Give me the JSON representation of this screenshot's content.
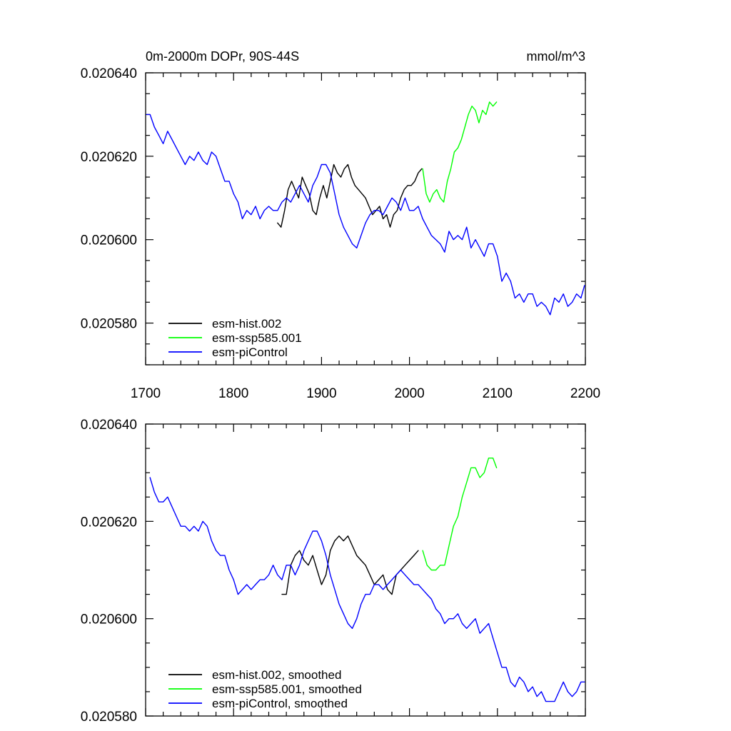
{
  "chart_data": [
    {
      "type": "line",
      "title_left": "0m-2000m DOPr, 90S-44S",
      "title_right": "mmol/m^3",
      "xlabel": "",
      "ylabel": "",
      "xlim": [
        1700,
        2200
      ],
      "ylim": [
        0.02057,
        0.02064
      ],
      "x_ticks": [
        1700,
        1800,
        1900,
        2000,
        2100,
        2200
      ],
      "x_tick_labels": [
        "1700",
        "1800",
        "1900",
        "2000",
        "2100",
        "2200"
      ],
      "y_ticks": [
        0.02058,
        0.0206,
        0.02062,
        0.02064
      ],
      "y_tick_labels": [
        "0.020580",
        "0.020600",
        "0.020620",
        "0.020640"
      ],
      "legend_position": "bottom-left",
      "grid": false,
      "series": [
        {
          "name": "esm-hist.002",
          "color": "#000000",
          "x": [
            1850,
            1854,
            1858,
            1862,
            1866,
            1870,
            1874,
            1878,
            1882,
            1886,
            1890,
            1894,
            1898,
            1902,
            1906,
            1910,
            1914,
            1918,
            1922,
            1926,
            1930,
            1934,
            1938,
            1942,
            1946,
            1950,
            1954,
            1958,
            1962,
            1966,
            1970,
            1974,
            1978,
            1982,
            1986,
            1990,
            1994,
            1998,
            2002,
            2006,
            2010,
            2014
          ],
          "y": [
            0.020604,
            0.020603,
            0.020607,
            0.020612,
            0.020614,
            0.020612,
            0.02061,
            0.020615,
            0.020613,
            0.020611,
            0.020607,
            0.020606,
            0.02061,
            0.020613,
            0.02061,
            0.020614,
            0.020618,
            0.020616,
            0.020615,
            0.020617,
            0.020618,
            0.020615,
            0.020613,
            0.020612,
            0.020611,
            0.02061,
            0.020608,
            0.020606,
            0.020607,
            0.020608,
            0.020605,
            0.020606,
            0.020603,
            0.020606,
            0.020607,
            0.02061,
            0.020612,
            0.020613,
            0.020613,
            0.020614,
            0.020616,
            0.020617
          ]
        },
        {
          "name": "esm-ssp585.001",
          "color": "#00ff00",
          "x": [
            2015,
            2019,
            2023,
            2027,
            2031,
            2035,
            2039,
            2043,
            2047,
            2051,
            2055,
            2059,
            2063,
            2067,
            2071,
            2075,
            2079,
            2083,
            2087,
            2091,
            2095,
            2099
          ],
          "y": [
            0.020617,
            0.020611,
            0.020609,
            0.020611,
            0.020612,
            0.02061,
            0.020609,
            0.020614,
            0.020617,
            0.020621,
            0.020622,
            0.020624,
            0.020627,
            0.02063,
            0.020632,
            0.020631,
            0.020628,
            0.020631,
            0.02063,
            0.020633,
            0.020632,
            0.020633
          ]
        },
        {
          "name": "esm-piControl",
          "color": "#0000ff",
          "x": [
            1701,
            1705,
            1710,
            1715,
            1720,
            1725,
            1730,
            1735,
            1740,
            1745,
            1750,
            1755,
            1760,
            1765,
            1770,
            1775,
            1780,
            1785,
            1790,
            1795,
            1800,
            1805,
            1810,
            1815,
            1820,
            1825,
            1830,
            1835,
            1840,
            1845,
            1850,
            1855,
            1860,
            1865,
            1870,
            1875,
            1880,
            1885,
            1890,
            1895,
            1900,
            1905,
            1910,
            1915,
            1920,
            1925,
            1930,
            1935,
            1940,
            1945,
            1950,
            1955,
            1960,
            1965,
            1970,
            1975,
            1980,
            1985,
            1990,
            1995,
            2000,
            2005,
            2010,
            2015,
            2020,
            2025,
            2030,
            2035,
            2040,
            2045,
            2050,
            2055,
            2060,
            2065,
            2070,
            2075,
            2080,
            2085,
            2090,
            2095,
            2100,
            2105,
            2110,
            2115,
            2120,
            2125,
            2130,
            2135,
            2140,
            2145,
            2150,
            2155,
            2160,
            2165,
            2170,
            2175,
            2180,
            2185,
            2190,
            2195,
            2199
          ],
          "y": [
            0.02063,
            0.02063,
            0.020627,
            0.020625,
            0.020623,
            0.020626,
            0.020624,
            0.020622,
            0.02062,
            0.020618,
            0.02062,
            0.020619,
            0.020621,
            0.020619,
            0.020618,
            0.020621,
            0.02062,
            0.020617,
            0.020614,
            0.020614,
            0.020611,
            0.020609,
            0.020605,
            0.020607,
            0.020606,
            0.020608,
            0.020605,
            0.020607,
            0.020608,
            0.020607,
            0.020607,
            0.020609,
            0.02061,
            0.020609,
            0.020611,
            0.020613,
            0.020611,
            0.020609,
            0.020613,
            0.020615,
            0.020618,
            0.020618,
            0.020616,
            0.020611,
            0.020606,
            0.020603,
            0.020601,
            0.020599,
            0.020598,
            0.020601,
            0.020604,
            0.020606,
            0.020607,
            0.020607,
            0.020606,
            0.020608,
            0.02061,
            0.020609,
            0.020607,
            0.02061,
            0.020607,
            0.020607,
            0.020608,
            0.020605,
            0.020603,
            0.020601,
            0.0206,
            0.020599,
            0.020597,
            0.020602,
            0.0206,
            0.020601,
            0.0206,
            0.020603,
            0.020598,
            0.0206,
            0.020598,
            0.020596,
            0.020599,
            0.020599,
            0.020596,
            0.02059,
            0.020592,
            0.02059,
            0.020586,
            0.020587,
            0.020585,
            0.020587,
            0.020587,
            0.020584,
            0.020585,
            0.020584,
            0.020582,
            0.020586,
            0.020585,
            0.020587,
            0.020584,
            0.020585,
            0.020587,
            0.020586,
            0.020589
          ]
        }
      ]
    },
    {
      "type": "line",
      "title_left": "",
      "title_right": "",
      "xlabel": "",
      "ylabel": "",
      "xlim": [
        1700,
        2200
      ],
      "ylim": [
        0.02058,
        0.02064
      ],
      "x_ticks": [
        1700,
        1800,
        1900,
        2000,
        2100,
        2200
      ],
      "x_tick_labels": [],
      "y_ticks": [
        0.02058,
        0.0206,
        0.02062,
        0.02064
      ],
      "y_tick_labels": [
        "0.020580",
        "0.020600",
        "0.020620",
        "0.020640"
      ],
      "legend_position": "bottom-left",
      "grid": false,
      "series": [
        {
          "name": "esm-hist.002, smoothed",
          "color": "#000000",
          "x": [
            1855,
            1860,
            1865,
            1870,
            1875,
            1880,
            1885,
            1890,
            1895,
            1900,
            1905,
            1910,
            1915,
            1920,
            1925,
            1930,
            1935,
            1940,
            1945,
            1950,
            1955,
            1960,
            1965,
            1970,
            1975,
            1980,
            1985,
            1990,
            1995,
            2000,
            2005,
            2010
          ],
          "y": [
            0.020605,
            0.020605,
            0.020611,
            0.020613,
            0.020614,
            0.020612,
            0.020611,
            0.020613,
            0.02061,
            0.020607,
            0.020609,
            0.020614,
            0.020616,
            0.020617,
            0.020616,
            0.020617,
            0.020615,
            0.020613,
            0.020612,
            0.020611,
            0.020609,
            0.020607,
            0.020608,
            0.020609,
            0.020606,
            0.020605,
            0.020609,
            0.02061,
            0.020611,
            0.020612,
            0.020613,
            0.020614
          ]
        },
        {
          "name": "esm-ssp585.001, smoothed",
          "color": "#00ff00",
          "x": [
            2015,
            2020,
            2025,
            2030,
            2035,
            2040,
            2045,
            2050,
            2055,
            2060,
            2065,
            2070,
            2075,
            2080,
            2085,
            2090,
            2095,
            2099
          ],
          "y": [
            0.020614,
            0.020611,
            0.02061,
            0.02061,
            0.020611,
            0.020611,
            0.020615,
            0.020619,
            0.020621,
            0.020625,
            0.020628,
            0.020631,
            0.020631,
            0.020629,
            0.02063,
            0.020633,
            0.020633,
            0.020631
          ]
        },
        {
          "name": "esm-piControl, smoothed",
          "color": "#0000ff",
          "x": [
            1705,
            1710,
            1715,
            1720,
            1725,
            1730,
            1735,
            1740,
            1745,
            1750,
            1755,
            1760,
            1765,
            1770,
            1775,
            1780,
            1785,
            1790,
            1795,
            1800,
            1805,
            1810,
            1815,
            1820,
            1825,
            1830,
            1835,
            1840,
            1845,
            1850,
            1855,
            1860,
            1865,
            1870,
            1875,
            1880,
            1885,
            1890,
            1895,
            1900,
            1905,
            1910,
            1915,
            1920,
            1925,
            1930,
            1935,
            1940,
            1945,
            1950,
            1955,
            1960,
            1965,
            1970,
            1975,
            1980,
            1985,
            1990,
            1995,
            2000,
            2005,
            2010,
            2015,
            2020,
            2025,
            2030,
            2035,
            2040,
            2045,
            2050,
            2055,
            2060,
            2065,
            2070,
            2075,
            2080,
            2085,
            2090,
            2095,
            2100,
            2105,
            2110,
            2115,
            2120,
            2125,
            2130,
            2135,
            2140,
            2145,
            2150,
            2155,
            2160,
            2165,
            2170,
            2175,
            2180,
            2185,
            2190,
            2195,
            2199
          ],
          "y": [
            0.020629,
            0.020626,
            0.020624,
            0.020624,
            0.020625,
            0.020623,
            0.020621,
            0.020619,
            0.020619,
            0.020618,
            0.020619,
            0.020618,
            0.02062,
            0.020619,
            0.020616,
            0.020614,
            0.020613,
            0.020613,
            0.02061,
            0.020608,
            0.020605,
            0.020606,
            0.020607,
            0.020606,
            0.020607,
            0.020608,
            0.020608,
            0.020609,
            0.020611,
            0.020609,
            0.020608,
            0.020611,
            0.020611,
            0.020609,
            0.020611,
            0.020614,
            0.020616,
            0.020618,
            0.020618,
            0.020616,
            0.020613,
            0.020609,
            0.020606,
            0.020603,
            0.020601,
            0.020599,
            0.020598,
            0.0206,
            0.020603,
            0.020605,
            0.020605,
            0.020607,
            0.020607,
            0.020606,
            0.020607,
            0.020608,
            0.020609,
            0.02061,
            0.020609,
            0.020608,
            0.020607,
            0.020607,
            0.020606,
            0.020605,
            0.020604,
            0.020602,
            0.020601,
            0.020599,
            0.0206,
            0.0206,
            0.020601,
            0.020599,
            0.020598,
            0.020599,
            0.0206,
            0.020597,
            0.020598,
            0.020599,
            0.020596,
            0.020593,
            0.02059,
            0.02059,
            0.020587,
            0.020586,
            0.020588,
            0.020587,
            0.020585,
            0.020586,
            0.020584,
            0.020585,
            0.020583,
            0.020583,
            0.020583,
            0.020585,
            0.020587,
            0.020585,
            0.020584,
            0.020585,
            0.020587,
            0.020587
          ]
        }
      ]
    }
  ]
}
